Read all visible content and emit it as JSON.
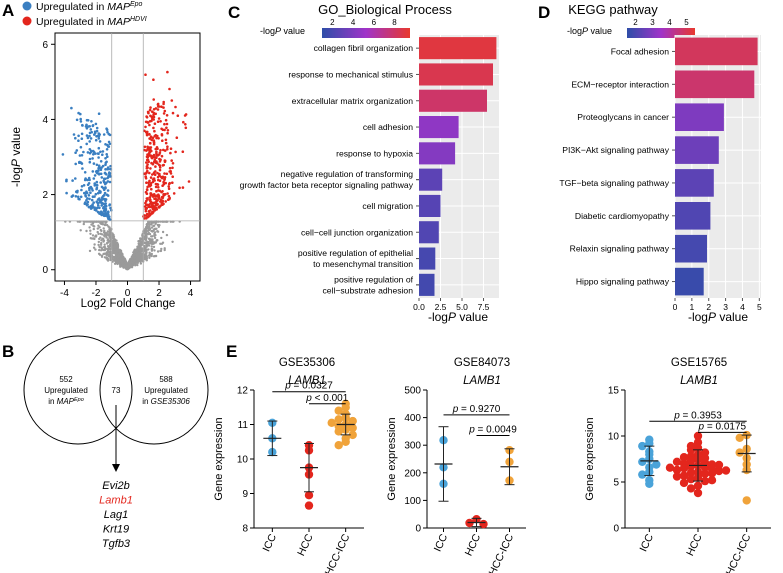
{
  "panel_labels": {
    "a": "A",
    "b": "B",
    "c": "C",
    "d": "D",
    "e": "E"
  },
  "colors": {
    "blue": "#3a7fc1",
    "red": "#e3261d",
    "gray": "#9a9a9a",
    "icc": "#4aa3d9",
    "hcc": "#e3261d",
    "chcc": "#f0a33a",
    "grid_bg": "#ebebeb",
    "grad_low": "#2e4ea8",
    "grad_mid": "#a033c9",
    "grad_high": "#e8382e"
  },
  "chart_data": [
    {
      "id": "volcano",
      "type": "scatter",
      "legend": [
        {
          "pre": "Upregulated in ",
          "italic": "MAP",
          "sup": "Epo",
          "color": "#3a7fc1"
        },
        {
          "pre": "Upregulated in ",
          "italic": "MAP",
          "sup": "HDVI",
          "color": "#e3261d"
        }
      ],
      "xlabel": "Log2 Fold Change",
      "ylabel_pre": "-log",
      "ylabel_italic": "P",
      "ylabel_post": " value",
      "xlim": [
        -4.6,
        4.6
      ],
      "ylim": [
        -0.3,
        6.3
      ],
      "xticks": [
        -4,
        -2,
        0,
        2,
        4
      ],
      "yticks": [
        0,
        2,
        4,
        6
      ],
      "fc_threshold": 1,
      "p_threshold": 1.3
    },
    {
      "id": "venn",
      "type": "venn",
      "left_count": "552",
      "left_label_1": "Upregulated",
      "left_label_2_pre": "in ",
      "left_label_2_italic": "MAP",
      "left_label_2_sup": "Epo",
      "overlap_count": "73",
      "right_count": "588",
      "right_label_1": "Upregulated",
      "right_label_2_pre": "in ",
      "right_label_2_italic": "GSE35306",
      "genes": [
        "Evi2b",
        "Lamb1",
        "Lag1",
        "Krt19",
        "Tgfb3"
      ],
      "highlight_gene": "Lamb1"
    },
    {
      "id": "go",
      "type": "bar",
      "orientation": "horizontal",
      "title": "GO_Biological Process",
      "legend_label_pre": "-log",
      "legend_label_italic": "P",
      "legend_label_post": " value",
      "legend_ticks": [
        "2",
        "4",
        "6",
        "8"
      ],
      "legend_range": [
        1,
        9.5
      ],
      "xlabel_pre": "-log",
      "xlabel_italic": "P",
      "xlabel_post": " value",
      "xlim": [
        0,
        9.3
      ],
      "xticks": [
        "0.0",
        "2.5",
        "5.0",
        "7.5"
      ],
      "xtick_values": [
        0,
        2.5,
        5,
        7.5
      ],
      "categories": [
        [
          "collagen fibril organization"
        ],
        [
          "response to mechanical stimulus"
        ],
        [
          "extracellular matrix organization"
        ],
        [
          "cell adhesion"
        ],
        [
          "response to hypoxia"
        ],
        [
          "negative regulation of transforming",
          "growth factor beta receptor signaling pathway"
        ],
        [
          "cell migration"
        ],
        [
          "cell−cell junction organization"
        ],
        [
          "positive regulation of epithelial",
          "to mesenchymal transition"
        ],
        [
          "positive regulation of",
          "cell−substrate adhesion"
        ]
      ],
      "values": [
        9.0,
        8.6,
        7.9,
        4.6,
        4.2,
        2.7,
        2.5,
        2.3,
        1.9,
        1.8
      ]
    },
    {
      "id": "kegg",
      "type": "bar",
      "orientation": "horizontal",
      "title": "KEGG pathway",
      "legend_label_pre": "-log",
      "legend_label_italic": "P",
      "legend_label_post": " value",
      "legend_ticks": [
        "2",
        "3",
        "4",
        "5"
      ],
      "legend_range": [
        1.5,
        5.5
      ],
      "xlabel_pre": "-log",
      "xlabel_italic": "P",
      "xlabel_post": " value",
      "xlim": [
        0,
        5.1
      ],
      "xticks": [
        "0",
        "1",
        "2",
        "3",
        "4",
        "5"
      ],
      "xtick_values": [
        0,
        1,
        2,
        3,
        4,
        5
      ],
      "categories": [
        [
          "Focal adhesion"
        ],
        [
          "ECM−receptor interaction"
        ],
        [
          "Proteoglycans in cancer"
        ],
        [
          "PI3K−Akt signaling pathway"
        ],
        [
          "TGF−beta signaling pathway"
        ],
        [
          "Diabetic cardiomyopathy"
        ],
        [
          "Relaxin signaling pathway"
        ],
        [
          "Hippo signaling pathway"
        ]
      ],
      "values": [
        4.9,
        4.7,
        2.9,
        2.6,
        2.3,
        2.1,
        1.9,
        1.7
      ]
    },
    {
      "id": "gse35306",
      "type": "scatter",
      "dataset": "GSE35306",
      "gene": "LAMB1",
      "ylabel": "Gene expression",
      "ylim": [
        8,
        12
      ],
      "yticks": [
        "8",
        "9",
        "10",
        "11",
        "12"
      ],
      "ytick_values": [
        8,
        9,
        10,
        11,
        12
      ],
      "groups": [
        "ICC",
        "HCC",
        "cHCC-ICC"
      ],
      "mean": [
        10.6,
        9.75,
        11.0
      ],
      "err": [
        0.5,
        0.7,
        0.3
      ],
      "points": [
        [
          11.05,
          10.6,
          10.2
        ],
        [
          10.4,
          10.25,
          9.75,
          9.55,
          8.95,
          8.65
        ],
        [
          11.6,
          11.5,
          11.4,
          11.3,
          11.2,
          11.15,
          11.1,
          11.05,
          11.0,
          10.95,
          10.9,
          10.85,
          10.8,
          10.7,
          10.6,
          10.5,
          10.4
        ]
      ],
      "comparisons": [
        {
          "label": "p = 0.0327",
          "italic": "p",
          "rest": " = 0.0327",
          "from": 0,
          "to": 2,
          "y": 11.95
        },
        {
          "label": "p < 0.001",
          "italic": "p",
          "rest": " < 0.001",
          "from": 1,
          "to": 2,
          "y": 11.6
        }
      ]
    },
    {
      "id": "gse84073",
      "type": "scatter",
      "dataset": "GSE84073",
      "gene": "LAMB1",
      "ylabel": "Gene expression",
      "ylim": [
        0,
        500
      ],
      "yticks": [
        "0",
        "100",
        "200",
        "300",
        "400",
        "500"
      ],
      "ytick_values": [
        0,
        100,
        200,
        300,
        400,
        500
      ],
      "groups": [
        "ICC",
        "HCC",
        "cHCC-ICC"
      ],
      "mean": [
        232,
        20,
        222
      ],
      "err": [
        135,
        15,
        65
      ],
      "points": [
        [
          318,
          220,
          160
        ],
        [
          32,
          18,
          14
        ],
        [
          282,
          240,
          172
        ]
      ],
      "comparisons": [
        {
          "label": "p = 0.9270",
          "italic": "p",
          "rest": " = 0.9270",
          "from": 0,
          "to": 2,
          "y": 410
        },
        {
          "label": "p = 0.0049",
          "italic": "p",
          "rest": " = 0.0049",
          "from": 1,
          "to": 2,
          "y": 335
        }
      ]
    },
    {
      "id": "gse15765",
      "type": "scatter",
      "dataset": "GSE15765",
      "gene": "LAMB1",
      "ylabel": "Gene expression",
      "ylim": [
        0,
        15
      ],
      "yticks": [
        "0",
        "5",
        "10",
        "15"
      ],
      "ytick_values": [
        0,
        5,
        10,
        15
      ],
      "groups": [
        "ICC",
        "HCC",
        "cHCC-ICC"
      ],
      "mean": [
        7.3,
        6.8,
        8.1
      ],
      "err": [
        1.6,
        1.7,
        2.0
      ],
      "points": [
        [
          9.6,
          9.2,
          8.9,
          8.3,
          8.0,
          7.5,
          7.2,
          6.9,
          6.6,
          6.1,
          5.8,
          5.2,
          4.8
        ],
        [
          10.0,
          9.3,
          8.9,
          8.7,
          8.5,
          8.2,
          8.0,
          7.8,
          7.6,
          7.5,
          7.3,
          7.1,
          7.0,
          6.9,
          6.8,
          6.7,
          6.6,
          6.5,
          6.4,
          6.3,
          6.2,
          6.1,
          6.0,
          5.9,
          5.7,
          5.5,
          5.3,
          5.1,
          4.9,
          4.6,
          4.3,
          3.8,
          7.7,
          7.2,
          6.85,
          6.55,
          6.25,
          5.95,
          5.6,
          5.2
        ],
        [
          10.1,
          9.8,
          8.6,
          8.2,
          7.6,
          6.9,
          6.3,
          3.0
        ]
      ],
      "comparisons": [
        {
          "label": "p = 0.3953",
          "italic": "p",
          "rest": " = 0.3953",
          "from": 0,
          "to": 2,
          "y": 11.6
        },
        {
          "label": "p = 0.0175",
          "italic": "p",
          "rest": " = 0.0175",
          "from": 1,
          "to": 2,
          "y": 10.4
        }
      ]
    }
  ]
}
